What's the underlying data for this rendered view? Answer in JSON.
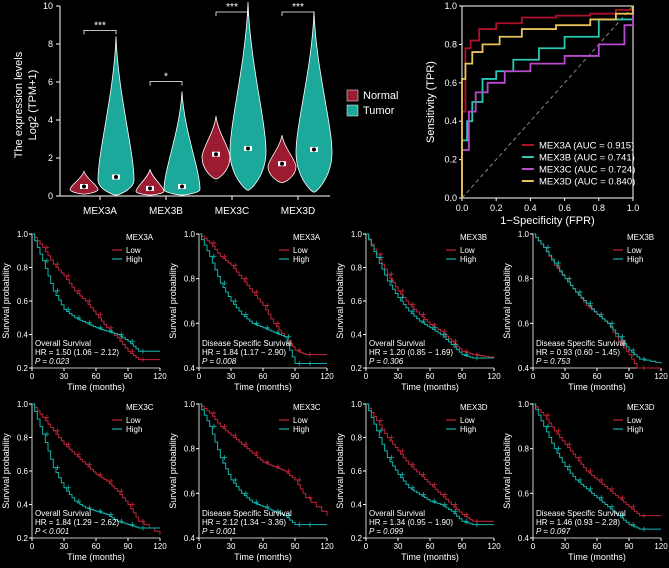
{
  "colors": {
    "normal": "#9b1b30",
    "tumor": "#1aa99a",
    "low": "#c0263a",
    "high": "#12b5ad",
    "mex3a": "#b0102c",
    "mex3b": "#29c9b4",
    "mex3c": "#b94ad0",
    "mex3d": "#e8c35a"
  },
  "chart_data": [
    {
      "id": "violin",
      "type": "violin",
      "ylabel_line1": "The expression levels",
      "ylabel_line2": "Log2 (TPM+1)",
      "ylim": [
        0,
        10
      ],
      "yticks": [
        "0",
        "2",
        "4",
        "6",
        "8",
        "10"
      ],
      "categories": [
        "MEX3A",
        "MEX3B",
        "MEX3C",
        "MEX3D"
      ],
      "legend": [
        "Normal",
        "Tumor"
      ],
      "series": [
        {
          "name": "Normal",
          "medians": [
            0.5,
            0.4,
            2.2,
            1.7
          ],
          "max": [
            1.3,
            1.4,
            4.2,
            3.2
          ],
          "min": [
            0.1,
            0.05,
            0.9,
            0.7
          ]
        },
        {
          "name": "Tumor",
          "medians": [
            1.0,
            0.5,
            2.5,
            2.45
          ],
          "max": [
            8.4,
            5.5,
            10.2,
            9.7
          ],
          "min": [
            0.05,
            0.05,
            0.3,
            0.2
          ]
        }
      ],
      "significance": [
        "***",
        "*",
        "***",
        "***"
      ]
    },
    {
      "id": "roc",
      "type": "line",
      "xlabel": "1−Specificity (FPR)",
      "ylabel": "Sensitivity (TPR)",
      "xlim": [
        0,
        1
      ],
      "ylim": [
        0,
        1
      ],
      "ticks": [
        "0.0",
        "0.2",
        "0.4",
        "0.6",
        "0.8",
        "1.0"
      ],
      "series": [
        {
          "name": "MEX3A (AUC = 0.915)",
          "x": [
            0,
            0,
            0.02,
            0.05,
            0.1,
            0.2,
            0.35,
            0.55,
            0.75,
            0.9,
            1
          ],
          "y": [
            0,
            0.45,
            0.78,
            0.82,
            0.88,
            0.91,
            0.94,
            0.95,
            0.96,
            0.98,
            1
          ]
        },
        {
          "name": "MEX3B (AUC = 0.741)",
          "x": [
            0,
            0,
            0.03,
            0.06,
            0.12,
            0.2,
            0.3,
            0.45,
            0.6,
            0.8,
            1
          ],
          "y": [
            0,
            0.3,
            0.4,
            0.5,
            0.62,
            0.66,
            0.72,
            0.78,
            0.84,
            0.93,
            1
          ]
        },
        {
          "name": "MEX3C (AUC = 0.724)",
          "x": [
            0,
            0,
            0.04,
            0.08,
            0.15,
            0.25,
            0.4,
            0.6,
            0.8,
            0.95,
            1
          ],
          "y": [
            0,
            0.25,
            0.45,
            0.55,
            0.6,
            0.66,
            0.7,
            0.74,
            0.8,
            0.9,
            1
          ]
        },
        {
          "name": "MEX3D (AUC = 0.840)",
          "x": [
            0,
            0,
            0.02,
            0.06,
            0.12,
            0.22,
            0.35,
            0.55,
            0.75,
            0.9,
            1
          ],
          "y": [
            0,
            0.62,
            0.7,
            0.76,
            0.8,
            0.84,
            0.88,
            0.9,
            0.93,
            0.96,
            1
          ]
        }
      ]
    },
    {
      "id": "km",
      "type": "line",
      "xlabel": "Time (months)",
      "ylabel": "Survival probability",
      "xticks": [
        "0",
        "30",
        "60",
        "90",
        "120"
      ],
      "legend": [
        "Low",
        "High"
      ],
      "panels": [
        {
          "gene": "MEX3A",
          "ymin": 0.2,
          "yticks": [
            "0.2",
            "0.4",
            "0.6",
            "0.8",
            "1.0"
          ],
          "type_label": "Overall Survival",
          "hr": "HR = 1.50 (1.06 − 2.12)",
          "p": "P = 0.023",
          "low": {
            "x": [
              0,
              10,
              20,
              30,
              40,
              50,
              60,
              70,
              80,
              90,
              100,
              120
            ],
            "y": [
              1,
              0.92,
              0.82,
              0.75,
              0.66,
              0.6,
              0.52,
              0.44,
              0.38,
              0.3,
              0.25,
              0.25
            ]
          },
          "high": {
            "x": [
              0,
              10,
              20,
              30,
              40,
              50,
              60,
              70,
              80,
              90,
              100,
              120
            ],
            "y": [
              1,
              0.84,
              0.66,
              0.55,
              0.5,
              0.47,
              0.44,
              0.42,
              0.4,
              0.36,
              0.3,
              0.3
            ]
          }
        },
        {
          "gene": "MEX3A",
          "ymin": 0.4,
          "yticks": [
            "0.4",
            "0.6",
            "0.8",
            "1.0"
          ],
          "type_label": "Disease Specific Survival",
          "hr": "HR = 1.84 (1.17 − 2.90)",
          "p": "P = 0.008",
          "low": {
            "x": [
              0,
              10,
              20,
              30,
              40,
              50,
              60,
              70,
              80,
              90,
              100,
              120
            ],
            "y": [
              1,
              0.96,
              0.9,
              0.86,
              0.8,
              0.74,
              0.68,
              0.6,
              0.54,
              0.48,
              0.46,
              0.46
            ]
          },
          "high": {
            "x": [
              0,
              10,
              20,
              30,
              40,
              50,
              60,
              70,
              80,
              90,
              100,
              120
            ],
            "y": [
              1,
              0.9,
              0.78,
              0.7,
              0.64,
              0.6,
              0.58,
              0.56,
              0.54,
              0.42,
              0.42,
              0.42
            ]
          }
        },
        {
          "gene": "MEX3B",
          "ymin": 0.2,
          "yticks": [
            "0.2",
            "0.4",
            "0.6",
            "0.8",
            "1.0"
          ],
          "type_label": "Overall Survival",
          "hr": "HR = 1.20 (0.85 − 1.69)",
          "p": "P = 0.306",
          "low": {
            "x": [
              0,
              10,
              20,
              30,
              40,
              50,
              60,
              70,
              80,
              90,
              100,
              120
            ],
            "y": [
              1,
              0.88,
              0.76,
              0.66,
              0.58,
              0.52,
              0.46,
              0.42,
              0.36,
              0.3,
              0.28,
              0.26
            ]
          },
          "high": {
            "x": [
              0,
              10,
              20,
              30,
              40,
              50,
              60,
              70,
              80,
              90,
              100,
              120
            ],
            "y": [
              1,
              0.86,
              0.72,
              0.62,
              0.54,
              0.48,
              0.44,
              0.4,
              0.34,
              0.28,
              0.26,
              0.26
            ]
          }
        },
        {
          "gene": "MEX3B",
          "ymin": 0.4,
          "yticks": [
            "0.4",
            "0.6",
            "0.8",
            "1.0"
          ],
          "type_label": "Disease Specific Survival",
          "hr": "HR = 0.93 (0.60 − 1.45)",
          "p": "P = 0.753",
          "low": {
            "x": [
              0,
              10,
              20,
              30,
              40,
              50,
              60,
              70,
              80,
              90,
              100,
              120
            ],
            "y": [
              1,
              0.94,
              0.86,
              0.8,
              0.74,
              0.68,
              0.64,
              0.6,
              0.52,
              0.46,
              0.38,
              0.36
            ]
          },
          "high": {
            "x": [
              0,
              10,
              20,
              30,
              40,
              50,
              60,
              70,
              80,
              90,
              100,
              120
            ],
            "y": [
              1,
              0.94,
              0.87,
              0.8,
              0.74,
              0.69,
              0.64,
              0.6,
              0.54,
              0.48,
              0.44,
              0.42
            ]
          }
        },
        {
          "gene": "MEX3C",
          "ymin": 0.2,
          "yticks": [
            "0.2",
            "0.4",
            "0.6",
            "0.8",
            "1.0"
          ],
          "type_label": "Overall Survival",
          "hr": "HR = 1.84 (1.29 − 2.62)",
          "p": "P < 0.001",
          "low": {
            "x": [
              0,
              10,
              20,
              30,
              40,
              50,
              60,
              70,
              80,
              90,
              100,
              120
            ],
            "y": [
              1,
              0.92,
              0.84,
              0.76,
              0.7,
              0.64,
              0.58,
              0.54,
              0.48,
              0.4,
              0.3,
              0.22
            ]
          },
          "high": {
            "x": [
              0,
              10,
              20,
              30,
              40,
              50,
              60,
              70,
              80,
              90,
              100,
              120
            ],
            "y": [
              1,
              0.82,
              0.62,
              0.5,
              0.42,
              0.38,
              0.36,
              0.34,
              0.3,
              0.28,
              0.26,
              0.26
            ]
          }
        },
        {
          "gene": "MEX3C",
          "ymin": 0.4,
          "yticks": [
            "0.4",
            "0.6",
            "0.8",
            "1.0"
          ],
          "type_label": "Disease Specific Survival",
          "hr": "HR = 2.12 (1.34 − 3.36)",
          "p": "P = 0.001",
          "low": {
            "x": [
              0,
              10,
              20,
              30,
              40,
              50,
              60,
              70,
              80,
              90,
              100,
              120
            ],
            "y": [
              1,
              0.96,
              0.9,
              0.86,
              0.82,
              0.78,
              0.74,
              0.72,
              0.7,
              0.66,
              0.58,
              0.5
            ]
          },
          "high": {
            "x": [
              0,
              10,
              20,
              30,
              40,
              50,
              60,
              70,
              80,
              90,
              100,
              120
            ],
            "y": [
              1,
              0.9,
              0.76,
              0.66,
              0.6,
              0.56,
              0.54,
              0.52,
              0.5,
              0.46,
              0.46,
              0.46
            ]
          }
        },
        {
          "gene": "MEX3D",
          "ymin": 0.2,
          "yticks": [
            "0.2",
            "0.4",
            "0.6",
            "0.8",
            "1.0"
          ],
          "type_label": "Overall Survival",
          "hr": "HR = 1.34 (0.95 − 1.90)",
          "p": "P = 0.099",
          "low": {
            "x": [
              0,
              10,
              20,
              30,
              40,
              50,
              60,
              70,
              80,
              90,
              100,
              120
            ],
            "y": [
              1,
              0.9,
              0.8,
              0.72,
              0.64,
              0.58,
              0.52,
              0.46,
              0.4,
              0.34,
              0.3,
              0.3
            ]
          },
          "high": {
            "x": [
              0,
              10,
              20,
              30,
              40,
              50,
              60,
              70,
              80,
              90,
              100,
              120
            ],
            "y": [
              1,
              0.84,
              0.68,
              0.58,
              0.5,
              0.46,
              0.42,
              0.4,
              0.36,
              0.3,
              0.28,
              0.28
            ]
          }
        },
        {
          "gene": "MEX3D",
          "ymin": 0.4,
          "yticks": [
            "0.4",
            "0.6",
            "0.8",
            "1.0"
          ],
          "type_label": "Disease Specific Survival",
          "hr": "HR = 1.46 (0.93 − 2.28)",
          "p": "P = 0.097",
          "low": {
            "x": [
              0,
              10,
              20,
              30,
              40,
              50,
              60,
              70,
              80,
              90,
              100,
              120
            ],
            "y": [
              1,
              0.95,
              0.88,
              0.82,
              0.76,
              0.7,
              0.66,
              0.62,
              0.58,
              0.54,
              0.5,
              0.5
            ]
          },
          "high": {
            "x": [
              0,
              10,
              20,
              30,
              40,
              50,
              60,
              70,
              80,
              90,
              100,
              120
            ],
            "y": [
              1,
              0.9,
              0.8,
              0.72,
              0.66,
              0.62,
              0.58,
              0.54,
              0.5,
              0.46,
              0.44,
              0.44
            ]
          }
        }
      ]
    }
  ]
}
